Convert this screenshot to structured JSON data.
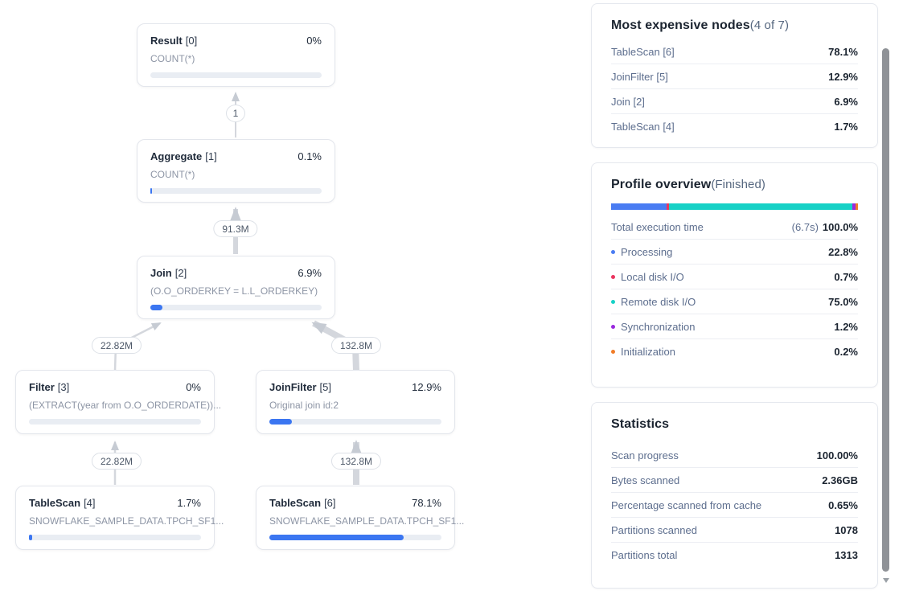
{
  "graph": {
    "nodes": [
      {
        "name": "Result",
        "id": "[0]",
        "pct": "0%",
        "pct_num": 0,
        "detail": "COUNT(*)"
      },
      {
        "name": "Aggregate",
        "id": "[1]",
        "pct": "0.1%",
        "pct_num": 0.1,
        "detail": "COUNT(*)"
      },
      {
        "name": "Join",
        "id": "[2]",
        "pct": "6.9%",
        "pct_num": 6.9,
        "detail": "(O.O_ORDERKEY = L.L_ORDERKEY)"
      },
      {
        "name": "Filter",
        "id": "[3]",
        "pct": "0%",
        "pct_num": 0,
        "detail": "(EXTRACT(year from O.O_ORDERDATE))..."
      },
      {
        "name": "JoinFilter",
        "id": "[5]",
        "pct": "12.9%",
        "pct_num": 12.9,
        "detail": "Original join id:2"
      },
      {
        "name": "TableScan",
        "id": "[4]",
        "pct": "1.7%",
        "pct_num": 1.7,
        "detail": "SNOWFLAKE_SAMPLE_DATA.TPCH_SF1..."
      },
      {
        "name": "TableScan",
        "id": "[6]",
        "pct": "78.1%",
        "pct_num": 78.1,
        "detail": "SNOWFLAKE_SAMPLE_DATA.TPCH_SF1..."
      }
    ],
    "edge_labels": [
      "1",
      "91.3M",
      "22.82M",
      "132.8M",
      "22.82M",
      "132.8M"
    ],
    "progress_color": "#3b76f1"
  },
  "panels": {
    "expensive": {
      "title": "Most expensive nodes",
      "suffix": "(4 of 7)",
      "rows": [
        {
          "label": "TableScan [6]",
          "value": "78.1%"
        },
        {
          "label": "JoinFilter [5]",
          "value": "12.9%"
        },
        {
          "label": "Join [2]",
          "value": "6.9%"
        },
        {
          "label": "TableScan [4]",
          "value": "1.7%"
        }
      ]
    },
    "profile": {
      "title": "Profile overview",
      "suffix": "(Finished)",
      "bar": [
        {
          "name": "Processing",
          "color": "#4a7cf2",
          "pct": 22.8
        },
        {
          "name": "Local disk I/O",
          "color": "#ea355f",
          "pct": 0.7
        },
        {
          "name": "Remote disk I/O",
          "color": "#17d1c6",
          "pct": 75.0
        },
        {
          "name": "Synchronization",
          "color": "#9929dd",
          "pct": 1.2
        },
        {
          "name": "Initialization",
          "color": "#f07c28",
          "pct": 0.2
        }
      ],
      "total": {
        "label": "Total execution time",
        "time": "(6.7s)",
        "value": "100.0%"
      },
      "rows": [
        {
          "label": "Processing",
          "value": "22.8%",
          "color": "#4a7cf2"
        },
        {
          "label": "Local disk I/O",
          "value": "0.7%",
          "color": "#ea355f"
        },
        {
          "label": "Remote disk I/O",
          "value": "75.0%",
          "color": "#17d1c6"
        },
        {
          "label": "Synchronization",
          "value": "1.2%",
          "color": "#9929dd"
        },
        {
          "label": "Initialization",
          "value": "0.2%",
          "color": "#f07c28"
        }
      ]
    },
    "statistics": {
      "title": "Statistics",
      "rows": [
        {
          "label": "Scan progress",
          "value": "100.00%"
        },
        {
          "label": "Bytes scanned",
          "value": "2.36GB"
        },
        {
          "label": "Percentage scanned from cache",
          "value": "0.65%"
        },
        {
          "label": "Partitions scanned",
          "value": "1078"
        },
        {
          "label": "Partitions total",
          "value": "1313"
        }
      ]
    }
  }
}
